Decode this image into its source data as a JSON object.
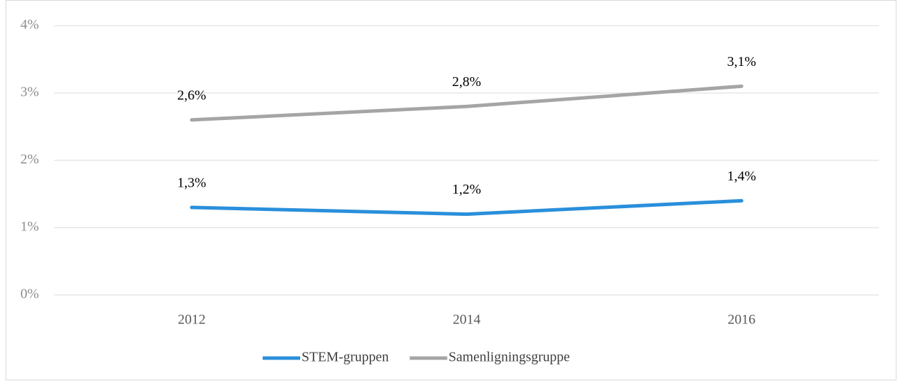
{
  "chart_data": {
    "type": "line",
    "categories": [
      "2012",
      "2014",
      "2016"
    ],
    "series": [
      {
        "name": "STEM-gruppen",
        "color": "#2a8fdb",
        "values": [
          1.3,
          1.2,
          1.4
        ],
        "value_labels": [
          "1,3%",
          "1,2%",
          "1,4%"
        ]
      },
      {
        "name": "Samenligningsgruppe",
        "color": "#a5a5a5",
        "values": [
          2.6,
          2.8,
          3.1
        ],
        "value_labels": [
          "2,6%",
          "2,8%",
          "3,1%"
        ]
      }
    ],
    "ylim": [
      0,
      4
    ],
    "yticks": [
      {
        "value": 0,
        "label": "0%"
      },
      {
        "value": 1,
        "label": "1%"
      },
      {
        "value": 2,
        "label": "2%"
      },
      {
        "value": 3,
        "label": "3%"
      },
      {
        "value": 4,
        "label": "4%"
      }
    ],
    "grid": true,
    "legend": "bottom"
  }
}
